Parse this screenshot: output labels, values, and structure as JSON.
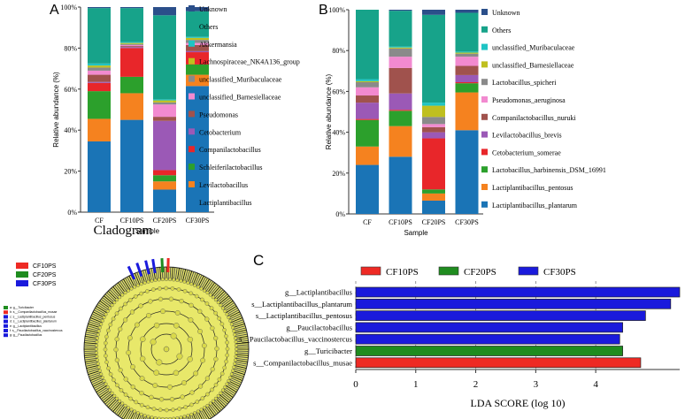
{
  "panels": {
    "a": {
      "label": "A"
    },
    "b": {
      "label": "B"
    },
    "c": {
      "label": "C",
      "cladogram_title": "Cladogram"
    }
  },
  "cladogram_legend": [
    {
      "name": "CF10PS",
      "color": "#ee2a24"
    },
    {
      "name": "CF20PS",
      "color": "#1f8c1f"
    },
    {
      "name": "CF30PS",
      "color": "#1a1adc"
    }
  ],
  "cladogram_taxa": [
    {
      "name": "a: g__Turicibacter",
      "color": "#1f8c1f"
    },
    {
      "name": "b: s__Companilactobacillus_musae",
      "color": "#ee2a24"
    },
    {
      "name": "c: s__Lactiplantibacillus_pentosus",
      "color": "#1a1adc"
    },
    {
      "name": "d: s__Lactiplantibacillus_plantarum",
      "color": "#1a1adc"
    },
    {
      "name": "e: g__Lactiplantibacillus",
      "color": "#1a1adc"
    },
    {
      "name": "f: s__Paucilactobacillus_vaccinostercus",
      "color": "#1a1adc"
    },
    {
      "name": "g: g__Paucilactobacillus",
      "color": "#1a1adc"
    }
  ],
  "chart_data": [
    {
      "type": "bar",
      "stacked": true,
      "panel": "A",
      "xlabel": "Sample",
      "ylabel": "Relative abundance (%)",
      "ylim": [
        0,
        100
      ],
      "yticks": [
        "0%",
        "20%",
        "40%",
        "60%",
        "80%",
        "100%"
      ],
      "categories": [
        "CF",
        "CF10PS",
        "CF20PS",
        "CF30PS"
      ],
      "series": [
        {
          "name": "Lactiplantibacillus",
          "color": "#1a74b6",
          "values": [
            34.5,
            45,
            11,
            61.5
          ]
        },
        {
          "name": "Levilactobacillus",
          "color": "#f5821f",
          "values": [
            11,
            13,
            4,
            5.5
          ]
        },
        {
          "name": "Schleiferilactobacillus",
          "color": "#2ca02c",
          "values": [
            13.5,
            8,
            3,
            5
          ]
        },
        {
          "name": "Companilactobacillus",
          "color": "#e8262a",
          "values": [
            4,
            14,
            2.5,
            6
          ]
        },
        {
          "name": "Cetobacterium",
          "color": "#9b59b6",
          "values": [
            0.5,
            0.5,
            24,
            0.5
          ]
        },
        {
          "name": "Pseudomonas",
          "color": "#a0524d",
          "values": [
            3.5,
            0.5,
            2,
            3
          ]
        },
        {
          "name": "unclassified_Barnesiellaceae",
          "color": "#f28ad0",
          "values": [
            2,
            0.5,
            6,
            1
          ]
        },
        {
          "name": "unclassified_Muribaculaceae",
          "color": "#8a8a8a",
          "values": [
            1.5,
            0.5,
            1,
            1.5
          ]
        },
        {
          "name": "Lachnospiraceae_NK4A136_group",
          "color": "#bfbf1f",
          "values": [
            1,
            0.5,
            1,
            1
          ]
        },
        {
          "name": "Akkermansia",
          "color": "#1fc4c4",
          "values": [
            1,
            0.5,
            0.5,
            0.5
          ]
        },
        {
          "name": "Others",
          "color": "#17a38a",
          "values": [
            27,
            16.5,
            41,
            12.5
          ]
        },
        {
          "name": "Unknown",
          "color": "#2b4f8a",
          "values": [
            0.5,
            0.5,
            4,
            2
          ]
        }
      ]
    },
    {
      "type": "bar",
      "stacked": true,
      "panel": "B",
      "xlabel": "Sample",
      "ylabel": "Relative abundance (%)",
      "ylim": [
        0,
        100
      ],
      "yticks": [
        "0%",
        "20%",
        "40%",
        "60%",
        "80%",
        "100%"
      ],
      "categories": [
        "CF",
        "CF10PS",
        "CF20PS",
        "CF30PS"
      ],
      "series": [
        {
          "name": "Lactiplantibacillus_plantarum",
          "color": "#1a74b6",
          "values": [
            24,
            28,
            6.5,
            41
          ]
        },
        {
          "name": "Lactiplantibacillus_pentosus",
          "color": "#f5821f",
          "values": [
            9,
            15,
            3.5,
            18.5
          ]
        },
        {
          "name": "Lactobacillus_harbinensis_DSM_16991",
          "color": "#2ca02c",
          "values": [
            13,
            7.5,
            2,
            4.5
          ]
        },
        {
          "name": "Cetobacterium_somerae",
          "color": "#e8262a",
          "values": [
            0.5,
            0.5,
            25,
            0.5
          ]
        },
        {
          "name": "Levilactobacillus_brevis",
          "color": "#9b59b6",
          "values": [
            8,
            8,
            3,
            3.5
          ]
        },
        {
          "name": "Companilactobacillus_nuruki",
          "color": "#a0524d",
          "values": [
            3.5,
            12.5,
            2.5,
            4.5
          ]
        },
        {
          "name": "Pseudomonas_aeruginosa",
          "color": "#f28ad0",
          "values": [
            4,
            5.5,
            1.5,
            4.5
          ]
        },
        {
          "name": "Lactobacillus_spicheri",
          "color": "#8a8a8a",
          "values": [
            2.5,
            4,
            3.5,
            1.5
          ]
        },
        {
          "name": "unclassified_Barnesiellaceae",
          "color": "#bfbf1f",
          "values": [
            0.5,
            0.5,
            5.5,
            0.5
          ]
        },
        {
          "name": "unclassified_Muribaculaceae",
          "color": "#1fc4c4",
          "values": [
            1,
            0.5,
            1.5,
            0.5
          ]
        },
        {
          "name": "Others",
          "color": "#17a38a",
          "values": [
            34,
            17.5,
            43,
            19
          ]
        },
        {
          "name": "Unknown",
          "color": "#2b4f8a",
          "values": [
            0,
            0.5,
            2.5,
            1.5
          ]
        }
      ]
    },
    {
      "type": "bar",
      "orientation": "horizontal",
      "panel": "C",
      "xlabel": "LDA SCORE (log 10)",
      "xlim": [
        0,
        5.4
      ],
      "xticks": [
        0,
        1,
        2,
        3,
        4
      ],
      "legend": [
        {
          "name": "CF10PS",
          "color": "#ee2a24"
        },
        {
          "name": "CF20PS",
          "color": "#1f8c1f"
        },
        {
          "name": "CF30PS",
          "color": "#1a1adc"
        }
      ],
      "bars": [
        {
          "label": "g__Lactiplantibacillus",
          "value": 5.4,
          "group": "CF30PS"
        },
        {
          "label": "s__Lactiplantibacillus_plantarum",
          "value": 5.25,
          "group": "CF30PS"
        },
        {
          "label": "s__Lactiplantibacillus_pentosus",
          "value": 4.83,
          "group": "CF30PS"
        },
        {
          "label": "g__Paucilactobacillus",
          "value": 4.45,
          "group": "CF30PS"
        },
        {
          "label": "s__Paucilactobacillus_vaccinostercus",
          "value": 4.4,
          "group": "CF30PS"
        },
        {
          "label": "g__Turicibacter",
          "value": 4.45,
          "group": "CF20PS"
        },
        {
          "label": "s__Companilactobacillus_musae",
          "value": 4.75,
          "group": "CF10PS"
        }
      ]
    }
  ]
}
